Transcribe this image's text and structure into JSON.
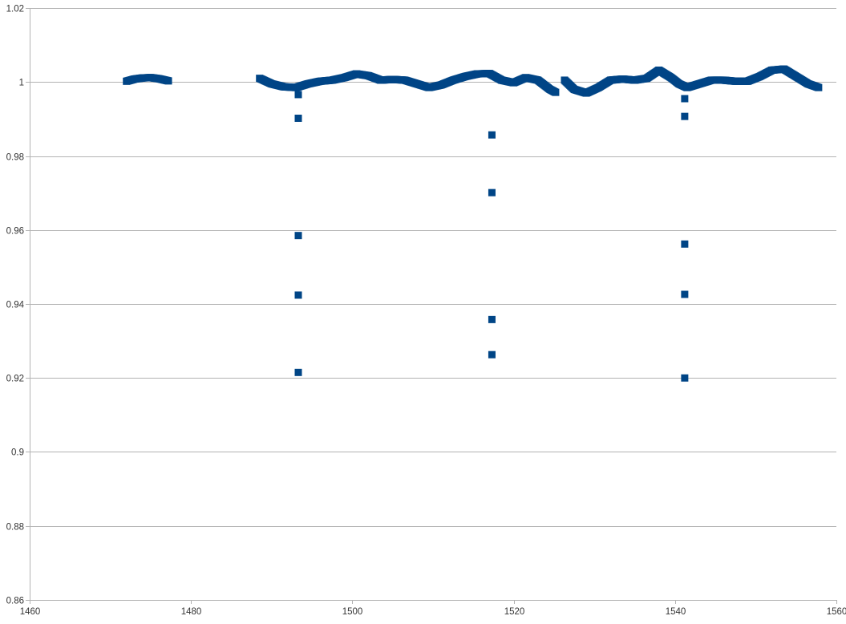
{
  "chart_data": {
    "type": "scatter",
    "title": "",
    "xlabel": "",
    "ylabel": "",
    "xlim": [
      1460,
      1560
    ],
    "ylim": [
      0.86,
      1.02
    ],
    "x_ticks": [
      1460,
      1480,
      1500,
      1520,
      1540,
      1560
    ],
    "y_ticks": [
      0.86,
      0.88,
      0.9,
      0.92,
      0.94,
      0.96,
      0.98,
      1,
      1.02
    ],
    "x_tick_labels": [
      "1460",
      "1480",
      "1500",
      "1520",
      "1540",
      "1560"
    ],
    "y_tick_labels": [
      "0.86",
      "0.88",
      "0.9",
      "0.92",
      "0.94",
      "0.96",
      "0.98",
      "1",
      "1.02"
    ],
    "grid": "horizontal",
    "legend": "none",
    "marker": "square",
    "marker_color": "#004586",
    "grid_color": "#b3b3b3",
    "baseline_segments": [
      {
        "x": [
          1472,
          1473,
          1474,
          1475,
          1476,
          1477.2
        ],
        "y": [
          1.0002,
          1.0008,
          1.0011,
          1.0012,
          1.0009,
          1.0003
        ]
      },
      {
        "x": [
          1488.5,
          1490,
          1491.5,
          1493,
          1494.5,
          1496,
          1497.5,
          1499,
          1500.5,
          1502,
          1503.5,
          1505,
          1506.5,
          1508,
          1509.5,
          1511,
          1512.5,
          1514,
          1515.5,
          1517,
          1518.5,
          1520,
          1521.5,
          1523,
          1524.5,
          1525.2
        ],
        "y": [
          1.001,
          0.9995,
          0.9987,
          0.9985,
          0.9995,
          1.0002,
          1.0005,
          1.0012,
          1.0022,
          1.0017,
          1.0005,
          1.0007,
          1.0005,
          0.9995,
          0.9985,
          0.9992,
          1.0005,
          1.0015,
          1.0022,
          1.0023,
          1.0005,
          0.9998,
          1.0012,
          1.0005,
          0.998,
          0.9972
        ]
      },
      {
        "x": [
          1526.3,
          1527.5,
          1529,
          1530.5,
          1532,
          1533.5,
          1535,
          1536.5,
          1538,
          1539.5,
          1540.5,
          1541.5,
          1543,
          1544.5,
          1546,
          1547.5,
          1549,
          1550.5,
          1552,
          1553.5,
          1555,
          1556.5,
          1557.8
        ],
        "y": [
          1.0005,
          0.998,
          0.997,
          0.9985,
          1.0005,
          1.0008,
          1.0005,
          1.001,
          1.0032,
          1.0012,
          0.9995,
          0.9985,
          0.9995,
          1.0005,
          1.0005,
          1.0002,
          1.0002,
          1.0015,
          1.0032,
          1.0035,
          1.0015,
          0.9995,
          0.9985
        ]
      }
    ],
    "points": [
      {
        "x": 1493.3,
        "y": 0.9966
      },
      {
        "x": 1493.3,
        "y": 0.9902
      },
      {
        "x": 1493.3,
        "y": 0.9585
      },
      {
        "x": 1493.3,
        "y": 0.9424
      },
      {
        "x": 1493.3,
        "y": 0.9215
      },
      {
        "x": 1517.3,
        "y": 0.9857
      },
      {
        "x": 1517.3,
        "y": 0.9701
      },
      {
        "x": 1517.3,
        "y": 0.9358
      },
      {
        "x": 1517.3,
        "y": 0.9263
      },
      {
        "x": 1541.2,
        "y": 0.9955
      },
      {
        "x": 1541.2,
        "y": 0.9907
      },
      {
        "x": 1541.2,
        "y": 0.9562
      },
      {
        "x": 1541.2,
        "y": 0.9426
      },
      {
        "x": 1541.2,
        "y": 0.92
      }
    ]
  }
}
